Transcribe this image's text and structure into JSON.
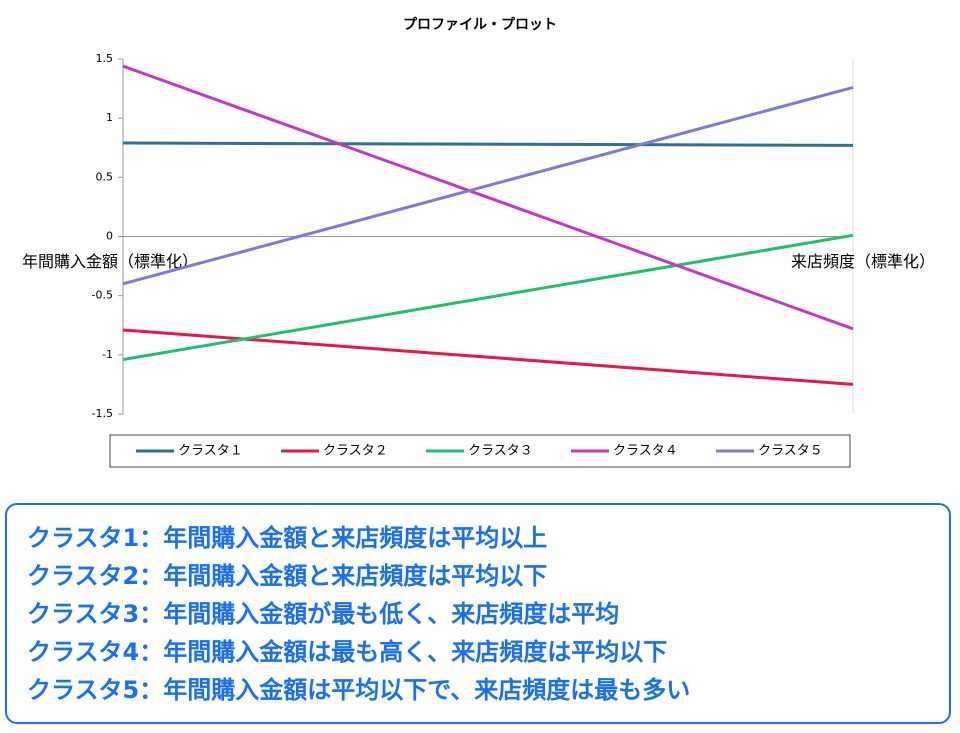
{
  "chart_data": {
    "type": "line",
    "title": "プロファイル・プロット",
    "categories": [
      "年間購入金額（標準化）",
      "来店頻度（標準化）"
    ],
    "series": [
      {
        "name": "クラスタ１",
        "color": "#31708f",
        "values": [
          0.79,
          0.77
        ]
      },
      {
        "name": "クラスタ２",
        "color": "#e8174a",
        "values": [
          -0.79,
          -1.25
        ]
      },
      {
        "name": "クラスタ３",
        "color": "#1fbf70",
        "values": [
          -1.04,
          0.01
        ]
      },
      {
        "name": "クラスタ４",
        "color": "#c23ab8",
        "values": [
          1.44,
          -0.78
        ]
      },
      {
        "name": "クラスタ５",
        "color": "#7b7bd4",
        "values": [
          -0.4,
          1.26
        ]
      }
    ],
    "ylim": [
      -1.5,
      1.5
    ],
    "yticks": [
      -1.5,
      -1,
      -0.5,
      0,
      0.5,
      1,
      1.5
    ],
    "legend": "bottom"
  },
  "notes": [
    "クラスタ1：年間購入金額と来店頻度は平均以上",
    "クラスタ2：年間購入金額と来店頻度は平均以下",
    "クラスタ3：年間購入金額が最も低く、来店頻度は平均",
    "クラスタ4：年間購入金額は最も高く、来店頻度は平均以下",
    "クラスタ5：年間購入金額は平均以下で、来店頻度は最も多い"
  ]
}
